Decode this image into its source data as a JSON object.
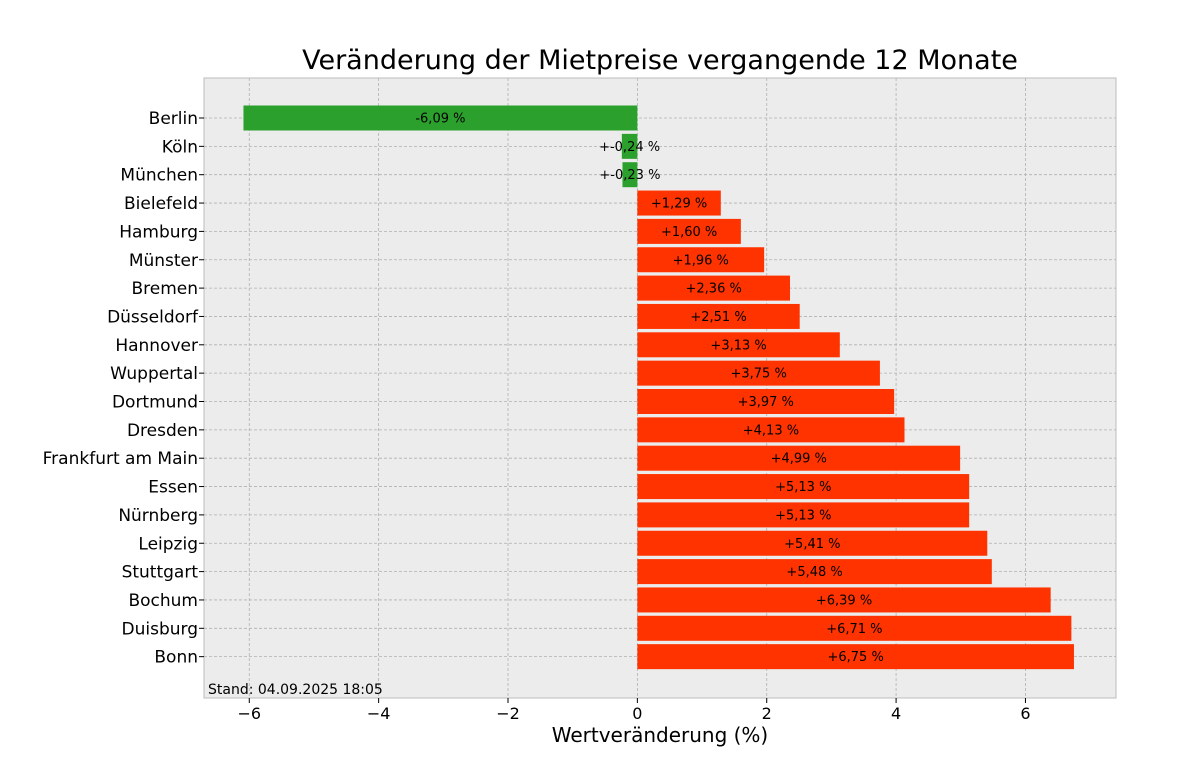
{
  "chart_data": {
    "type": "bar",
    "orientation": "horizontal",
    "title": "Veränderung der Mietpreise vergangende 12 Monate",
    "xlabel": "Wertveränderung (%)",
    "ylabel": "",
    "xlim": [
      -6.7,
      7.4
    ],
    "xticks": [
      -6,
      -4,
      -2,
      0,
      2,
      4,
      6
    ],
    "xtick_labels": [
      "−6",
      "−4",
      "−2",
      "0",
      "2",
      "4",
      "6"
    ],
    "grid": true,
    "annotation": "Stand: 04.09.2025 18:05",
    "colors": {
      "negative": "#2ca02c",
      "positive": "#ff3300",
      "background": "#ececec"
    },
    "categories": [
      "Berlin",
      "Köln",
      "München",
      "Bielefeld",
      "Hamburg",
      "Münster",
      "Bremen",
      "Düsseldorf",
      "Hannover",
      "Wuppertal",
      "Dortmund",
      "Dresden",
      "Frankfurt am Main",
      "Essen",
      "Nürnberg",
      "Leipzig",
      "Stuttgart",
      "Bochum",
      "Duisburg",
      "Bonn"
    ],
    "values": [
      -6.09,
      -0.24,
      -0.23,
      1.29,
      1.6,
      1.96,
      2.36,
      2.51,
      3.13,
      3.75,
      3.97,
      4.13,
      4.99,
      5.13,
      5.13,
      5.41,
      5.48,
      6.39,
      6.71,
      6.75
    ],
    "labels": [
      "-6,09 %",
      "+-0,24 %",
      "+-0,23 %",
      "+1,29 %",
      "+1,60 %",
      "+1,96 %",
      "+2,36 %",
      "+2,51 %",
      "+3,13 %",
      "+3,75 %",
      "+3,97 %",
      "+4,13 %",
      "+4,99 %",
      "+5,13 %",
      "+5,13 %",
      "+5,41 %",
      "+5,48 %",
      "+6,39 %",
      "+6,71 %",
      "+6,75 %"
    ]
  }
}
